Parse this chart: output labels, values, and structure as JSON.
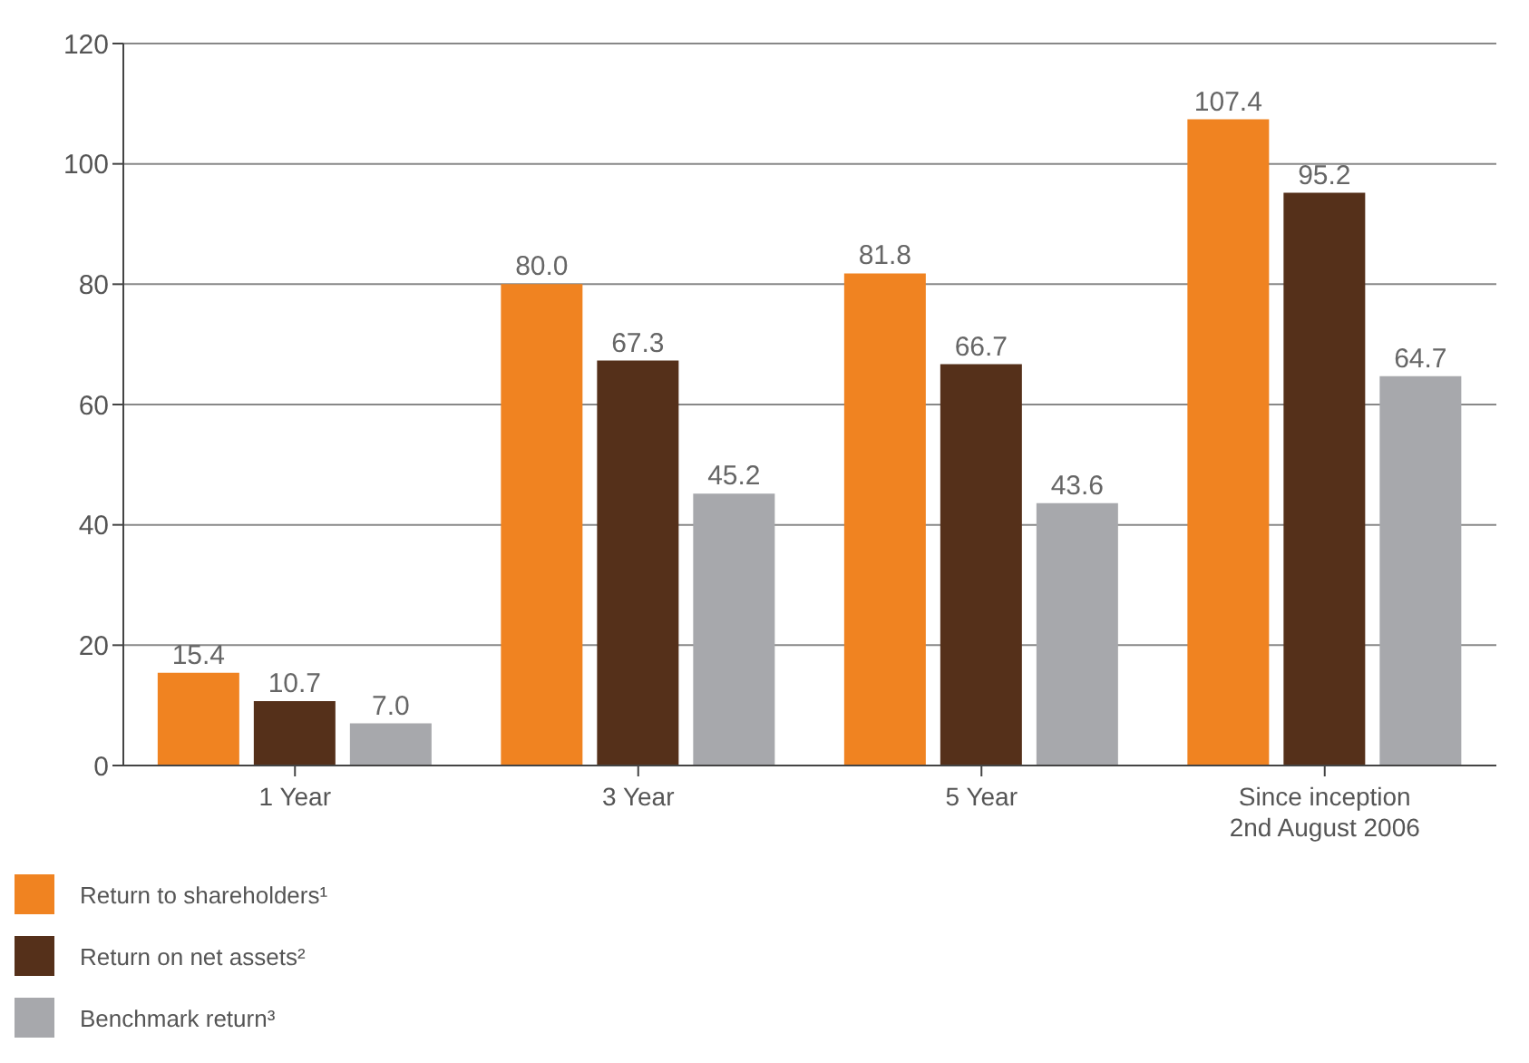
{
  "chart_data": {
    "type": "bar",
    "categories": [
      "1 Year",
      "3 Year",
      "5 Year",
      "Since inception\n2nd August 2006"
    ],
    "series": [
      {
        "name": "Return to shareholders¹",
        "color": "#f08321",
        "values": [
          15.4,
          80.0,
          81.8,
          107.4
        ],
        "value_labels": [
          "15.4",
          "80.0",
          "81.8",
          "107.4"
        ]
      },
      {
        "name": "Return on net assets²",
        "color": "#55301a",
        "values": [
          10.7,
          67.3,
          66.7,
          95.2
        ],
        "value_labels": [
          "10.7",
          "67.3",
          "66.7",
          "95.2"
        ]
      },
      {
        "name": "Benchmark return³",
        "color": "#a7a8ac",
        "values": [
          7.0,
          45.2,
          43.6,
          64.7
        ],
        "value_labels": [
          "7.0",
          "45.2",
          "43.6",
          "64.7"
        ]
      }
    ],
    "ylim": [
      0,
      120
    ],
    "yticks": [
      0,
      20,
      40,
      60,
      80,
      100,
      120
    ],
    "grid": "y",
    "legend": "bottom"
  }
}
